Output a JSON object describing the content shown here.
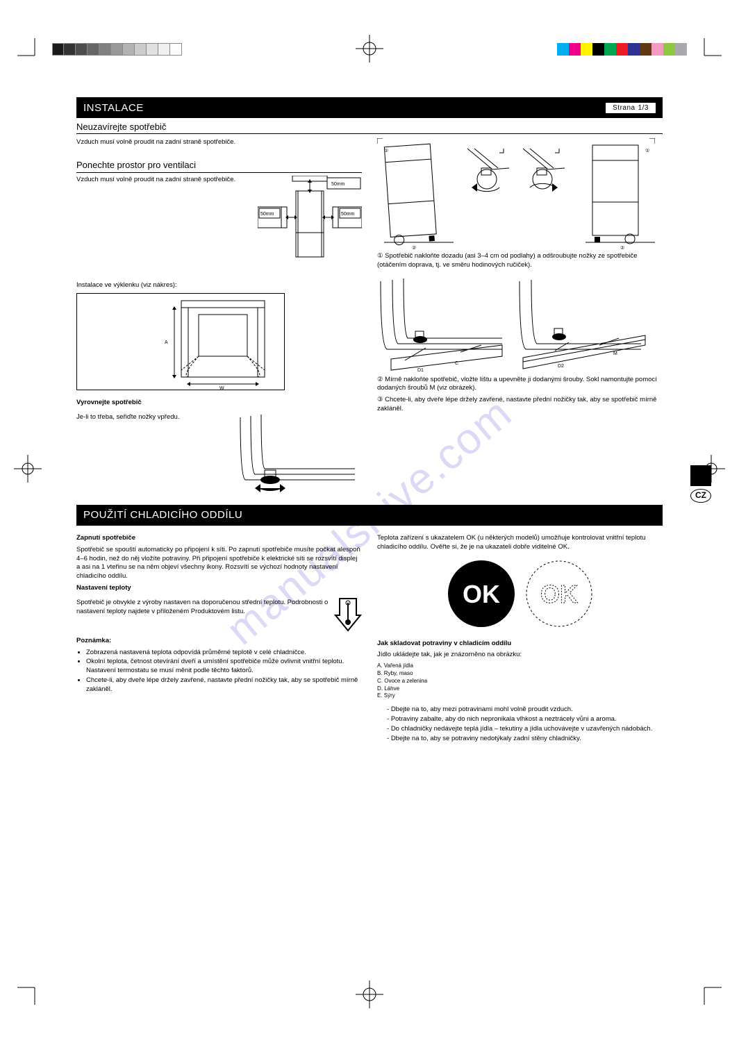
{
  "watermark": "manualshive.com",
  "lang_badge": "CZ",
  "page_badge": {
    "label": "Strana",
    "number": "1/3"
  },
  "section1": {
    "title": "INSTALACE",
    "sub_enclosing": "Neuzavírejte spotřebič",
    "sub_ventilation": "Ponechte prostor pro ventilaci",
    "vent_text": [
      "Vzduch musí volně proudit na zadní straně spotřebiče."
    ],
    "clearances": {
      "top": "50mm",
      "side_left": "50mm",
      "side_right": "50mm"
    },
    "niche_text": "Instalace ve výklenku (viz nákres):",
    "niche_dims": {
      "heightA": "A",
      "widthW": "W"
    },
    "leveling_heading": "Vyrovnejte spotřebič",
    "leveling_text": "Je-li to třeba, seřiďte nožky vpředu.",
    "tilt": {
      "intro": "① Spotřebič nakloňte dozadu (asi 3–4 cm od podlahy) a odšroubujte nožky ze spotřebiče (otáčením doprava, tj. ve směru hodinových ručiček).",
      "bracket_left": "①",
      "bracket_right": "①",
      "foot_left": "②",
      "foot_right": "②",
      "step2": "② Mírně nakloňte spotřebič, vložte lištu a upevněte ji dodanými šrouby. Sokl namontujte pomocí dodaných šroubů M (viz obrázek)."
    },
    "kick": {
      "labels": {
        "D1": "D1",
        "C": "C",
        "D2": "D2",
        "M": "M"
      },
      "step3": "③ Chcete-li, aby dveře lépe držely zavřené, nastavte přední nožičky tak, aby se spotřebič mírně zakláněl."
    }
  },
  "section2": {
    "title": "POUŽITÍ CHLADICÍHO ODDÍLU",
    "start_heading": "Zapnutí spotřebiče",
    "start_text": "Spotřebič se spouští automaticky po připojení k síti. Po zapnutí spotřebiče musíte počkat alespoň 4–6 hodin, než do něj vložíte potraviny. Při připojení spotřebiče k elektrické síti se rozsvítí displej a asi na 1 vteřinu se na něm objeví všechny ikony. Rozsvítí se výchozí hodnoty nastavení chladicího oddílu.",
    "temp_heading": "Nastavení teploty",
    "temp_text": "Spotřebič je obvykle z výroby nastaven na doporučenou střední teplotu. Podrobnosti o nastavení teploty najdete v přiloženém Produktovém listu.",
    "note_heading": "Poznámka:",
    "notes": [
      "Zobrazená nastavená teplota odpovídá průměrné teplotě v celé chladničce.",
      "Okolní teplota, četnost otevírání dveří a umístění spotřebiče může ovlivnit vnitřní teplotu. Nastavení termostatu se musí měnit podle těchto faktorů.",
      "Chcete-li, aby dveře lépe držely zavřené, nastavte přední nožičky tak, aby se spotřebič mírně zakláněl."
    ],
    "ok_note": "Teplota zařízení s ukazatelem OK (u některých modelů) umožňuje kontrolovat vnitřní teplotu chladicího oddílu. Ověřte si, že je na ukazateli dobře viditelné OK.",
    "ok_label": "OK",
    "store_heading": "Jak skladovat potraviny v chladicím oddílu",
    "store_text": "Jídlo ukládejte tak, jak je znázorněno na obrázku:",
    "store_items": [
      "Vařená jídla",
      "Ryby, maso",
      "Ovoce a zelenina",
      "Láhve",
      "Sýry"
    ],
    "legend": [
      "A.",
      "B.",
      "C.",
      "D.",
      "E."
    ],
    "tips": [
      "Dbejte na to, aby mezi potravinami mohl volně proudit vzduch.",
      "Potraviny zabalte, aby do nich nepronikala vlhkost a neztrácely vůni a aroma.",
      "Do chladničky nedávejte teplá jídla – tekutiny a jídla uchovávejte v uzavřených nádobách.",
      "Dbejte na to, aby se potraviny nedotýkaly zadní stěny chladničky."
    ]
  },
  "colors": {
    "gray_swatches": [
      "#1a1a1a",
      "#333333",
      "#4d4d4d",
      "#666666",
      "#808080",
      "#999999",
      "#b3b3b3",
      "#cccccc",
      "#e0e0e0",
      "#f0f0f0",
      "#ffffff"
    ],
    "cmyk_swatches": [
      "#00aeef",
      "#ec008c",
      "#fff200",
      "#000000",
      "#00a651",
      "#ed1c24",
      "#2e3192",
      "#603913",
      "#f49ac1",
      "#8dc63f",
      "#a7a9ac"
    ]
  }
}
